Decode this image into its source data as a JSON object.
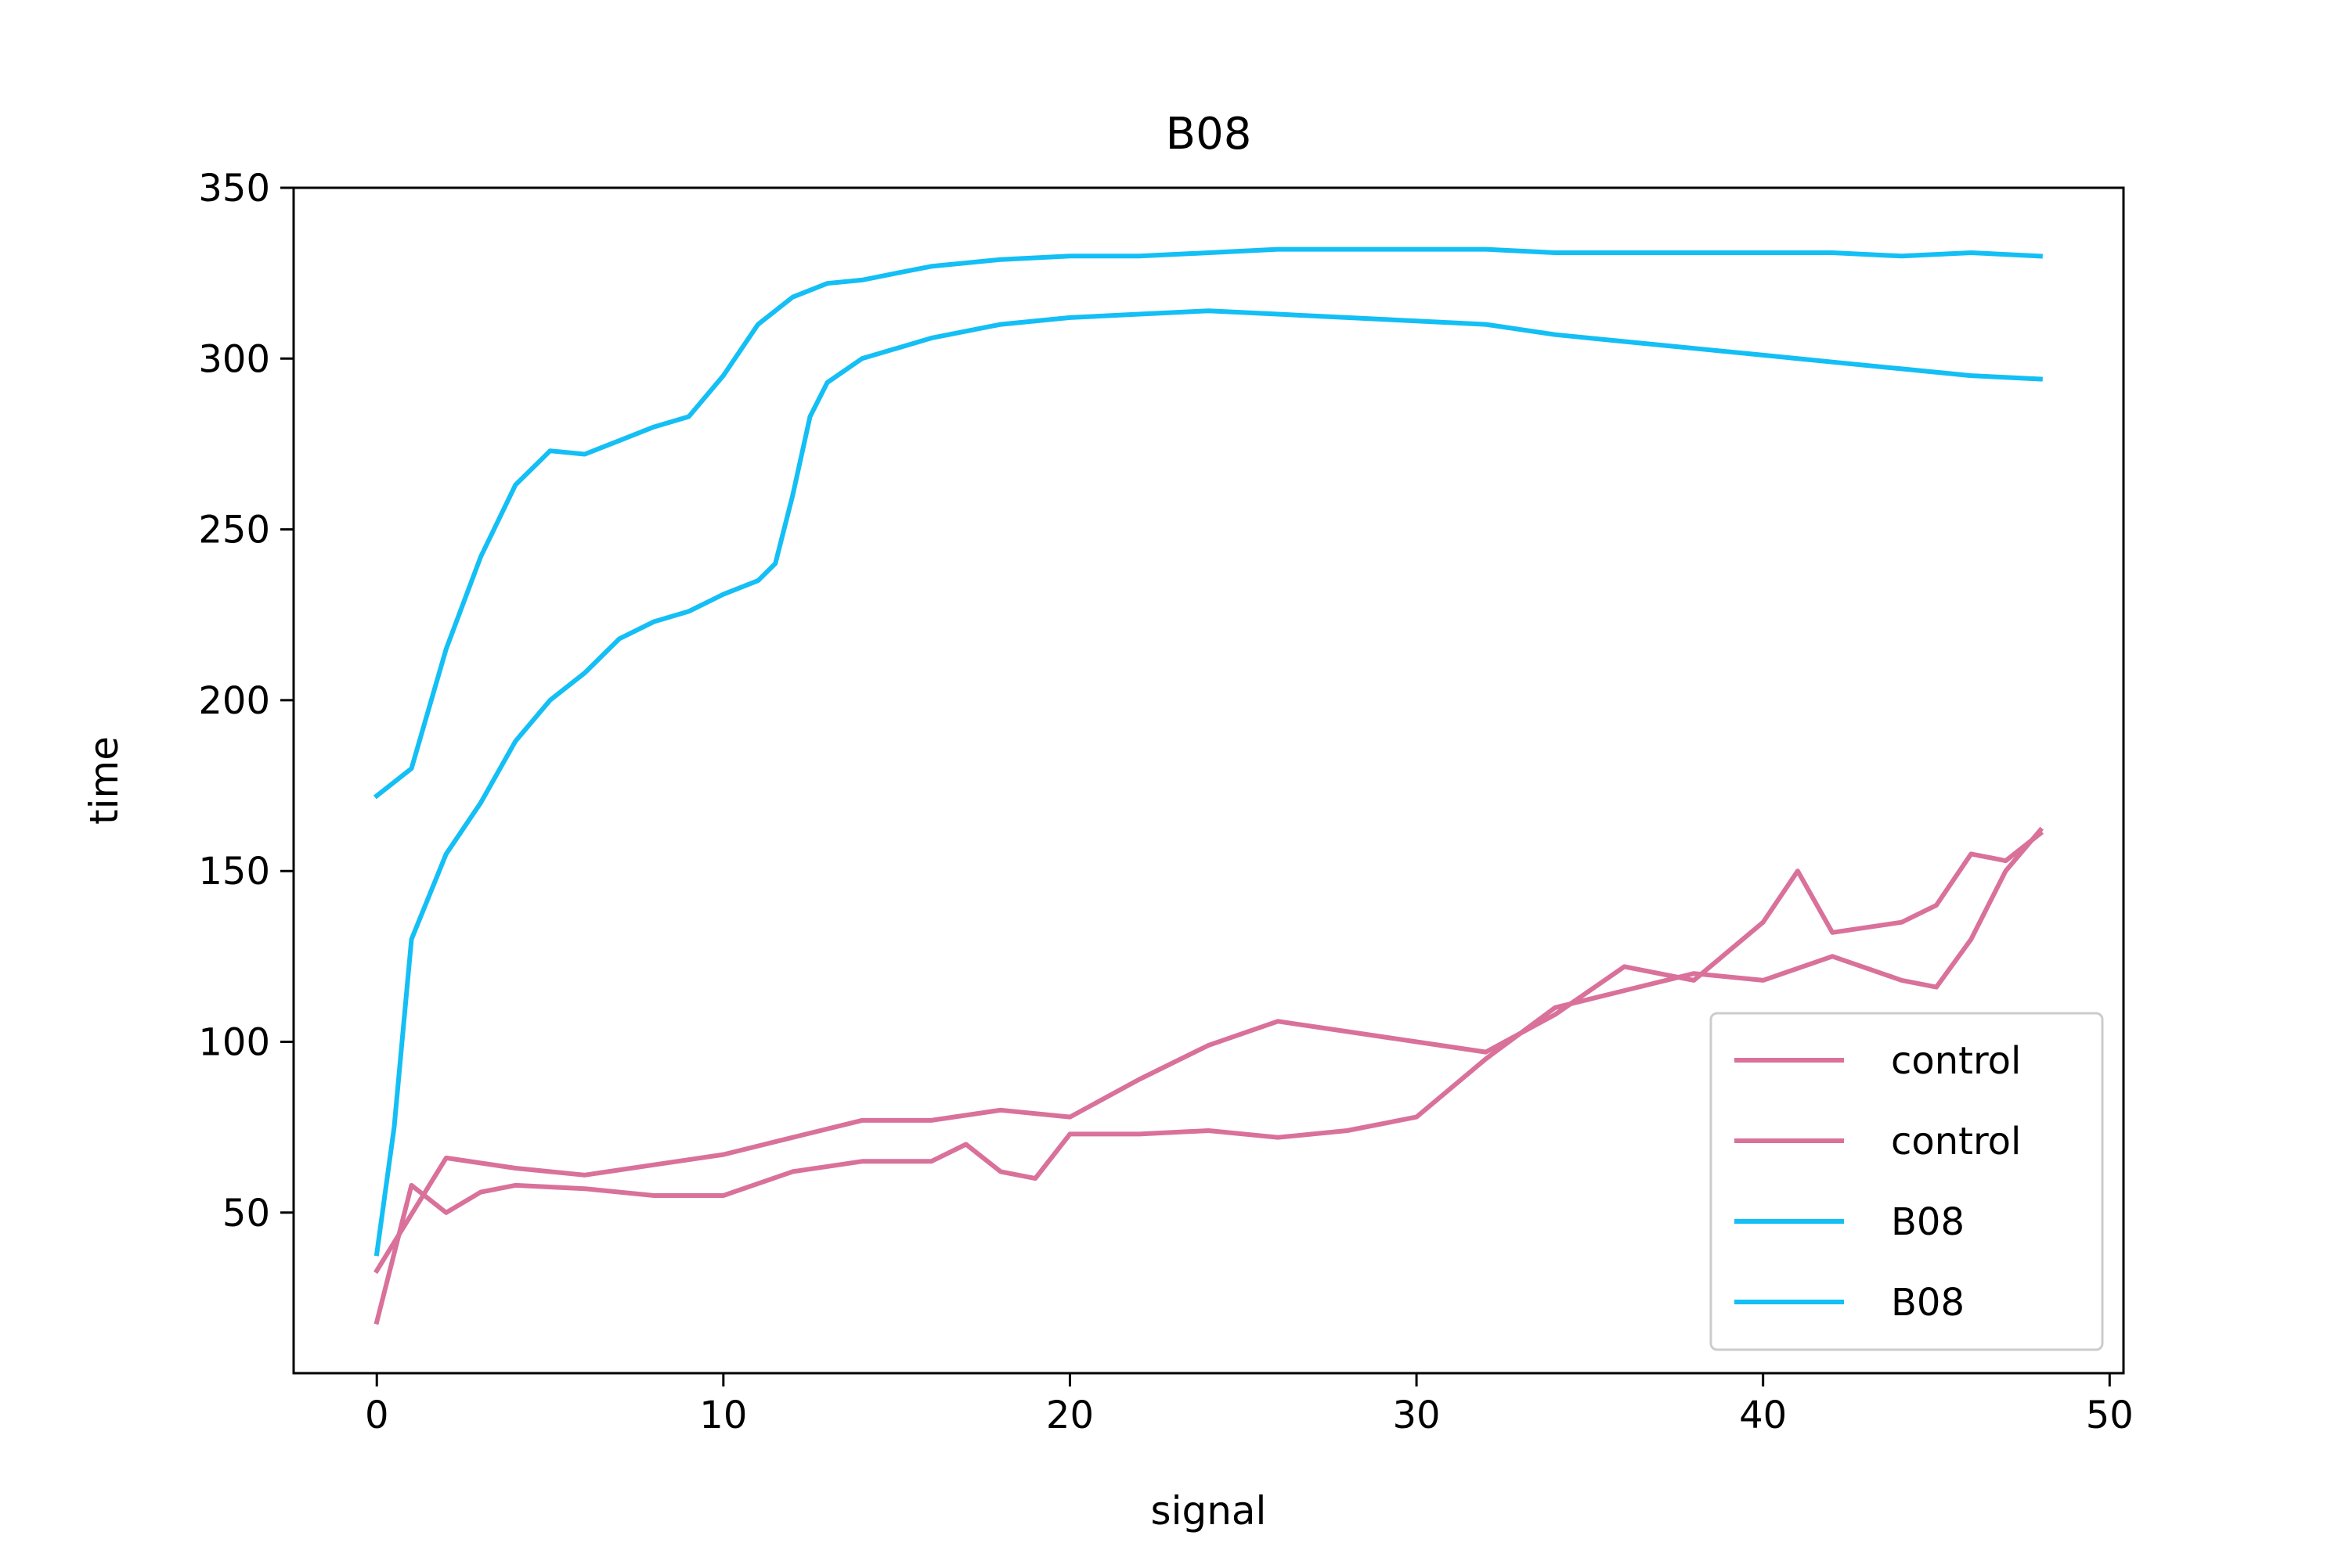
{
  "chart_data": {
    "type": "line",
    "title": "B08",
    "xlabel": "signal",
    "ylabel": "time",
    "xlim": [
      -2.4,
      50.4
    ],
    "ylim": [
      3,
      350
    ],
    "xticks": [
      0,
      10,
      20,
      30,
      40,
      50
    ],
    "yticks": [
      50,
      100,
      150,
      200,
      250,
      300,
      350
    ],
    "xtick_labels": [
      "0",
      "10",
      "20",
      "30",
      "40",
      "50"
    ],
    "ytick_labels": [
      "50",
      "100",
      "150",
      "200",
      "250",
      "300",
      "350"
    ],
    "grid": false,
    "legend_position": "lower-right",
    "series": [
      {
        "name": "control",
        "color": "#d9719a",
        "x": [
          0,
          2,
          4,
          6,
          8,
          10,
          12,
          14,
          16,
          18,
          20,
          22,
          24,
          26,
          28,
          30,
          32,
          34,
          36,
          38,
          40,
          41,
          42,
          44,
          45,
          46,
          47,
          48
        ],
        "values": [
          33,
          66,
          63,
          61,
          64,
          67,
          72,
          77,
          77,
          80,
          78,
          89,
          99,
          106,
          103,
          100,
          97,
          108,
          122,
          118,
          135,
          150,
          132,
          135,
          140,
          155,
          153,
          161
        ]
      },
      {
        "name": "control",
        "color": "#d9719a",
        "x": [
          0,
          1,
          2,
          3,
          4,
          6,
          8,
          10,
          12,
          14,
          16,
          17,
          18,
          19,
          20,
          22,
          24,
          26,
          28,
          30,
          32,
          34,
          36,
          38,
          40,
          42,
          44,
          45,
          46,
          47,
          48
        ],
        "values": [
          18,
          58,
          50,
          56,
          58,
          57,
          55,
          55,
          62,
          65,
          65,
          70,
          62,
          60,
          73,
          73,
          74,
          72,
          74,
          78,
          95,
          110,
          115,
          120,
          118,
          125,
          118,
          116,
          130,
          150,
          162
        ]
      },
      {
        "name": "B08",
        "color": "#13bff5",
        "x": [
          0,
          1,
          2,
          3,
          4,
          5,
          6,
          7,
          8,
          9,
          10,
          11,
          12,
          13,
          14,
          15,
          16,
          18,
          20,
          22,
          24,
          26,
          28,
          30,
          32,
          34,
          36,
          38,
          40,
          42,
          44,
          46,
          48
        ],
        "values": [
          172,
          180,
          215,
          242,
          263,
          273,
          272,
          276,
          280,
          283,
          295,
          310,
          318,
          322,
          323,
          325,
          327,
          329,
          330,
          330,
          331,
          332,
          332,
          332,
          332,
          331,
          331,
          331,
          331,
          331,
          330,
          331,
          330
        ]
      },
      {
        "name": "B08",
        "color": "#13bff5",
        "x": [
          0,
          0.5,
          1,
          2,
          3,
          4,
          5,
          6,
          7,
          8,
          9,
          10,
          11,
          11.5,
          12,
          12.5,
          13,
          14,
          15,
          16,
          18,
          20,
          22,
          24,
          26,
          28,
          30,
          32,
          34,
          36,
          38,
          40,
          42,
          44,
          46,
          48
        ],
        "values": [
          38,
          75,
          130,
          155,
          170,
          188,
          200,
          208,
          218,
          223,
          226,
          231,
          235,
          240,
          260,
          283,
          293,
          300,
          303,
          306,
          310,
          312,
          313,
          314,
          313,
          312,
          311,
          310,
          307,
          305,
          303,
          301,
          299,
          297,
          295,
          294
        ]
      }
    ]
  }
}
